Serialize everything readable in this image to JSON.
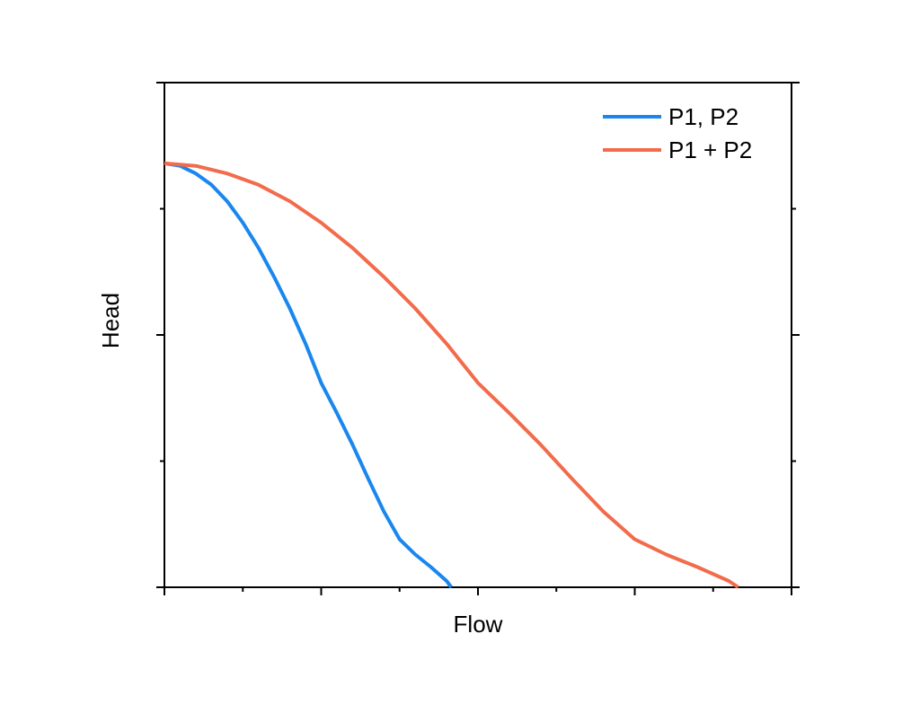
{
  "chart_data": {
    "type": "line",
    "xlabel": "Flow",
    "ylabel": "Head",
    "xlim": [
      0,
      4
    ],
    "ylim": [
      0,
      4
    ],
    "x_major_ticks": [
      0,
      1,
      2,
      3,
      4
    ],
    "x_minor_ticks": [
      0.5,
      1.5,
      2.5,
      3.5
    ],
    "y_major_ticks": [
      0,
      2,
      4
    ],
    "y_minor_ticks": [
      1,
      3
    ],
    "show_tick_labels": false,
    "grid": false,
    "legend_position": "top-right",
    "series": [
      {
        "name": "P1, P2",
        "color": "#1a87ee",
        "x": [
          0,
          0.1,
          0.2,
          0.3,
          0.4,
          0.5,
          0.6,
          0.7,
          0.8,
          0.9,
          1.0,
          1.1,
          1.2,
          1.3,
          1.4,
          1.5,
          1.6,
          1.7,
          1.8,
          1.83
        ],
        "y": [
          3.36,
          3.34,
          3.28,
          3.19,
          3.06,
          2.89,
          2.69,
          2.46,
          2.21,
          1.93,
          1.62,
          1.38,
          1.13,
          0.86,
          0.6,
          0.38,
          0.26,
          0.16,
          0.05,
          0
        ]
      },
      {
        "name": "P1 + P2",
        "color": "#f26b4b",
        "x": [
          0,
          0.2,
          0.4,
          0.6,
          0.8,
          1.0,
          1.2,
          1.4,
          1.6,
          1.8,
          2.0,
          2.2,
          2.4,
          2.6,
          2.8,
          3.0,
          3.2,
          3.4,
          3.6,
          3.66
        ],
        "y": [
          3.36,
          3.34,
          3.28,
          3.19,
          3.06,
          2.89,
          2.69,
          2.46,
          2.21,
          1.93,
          1.62,
          1.38,
          1.13,
          0.86,
          0.6,
          0.38,
          0.26,
          0.16,
          0.05,
          0
        ]
      }
    ]
  }
}
